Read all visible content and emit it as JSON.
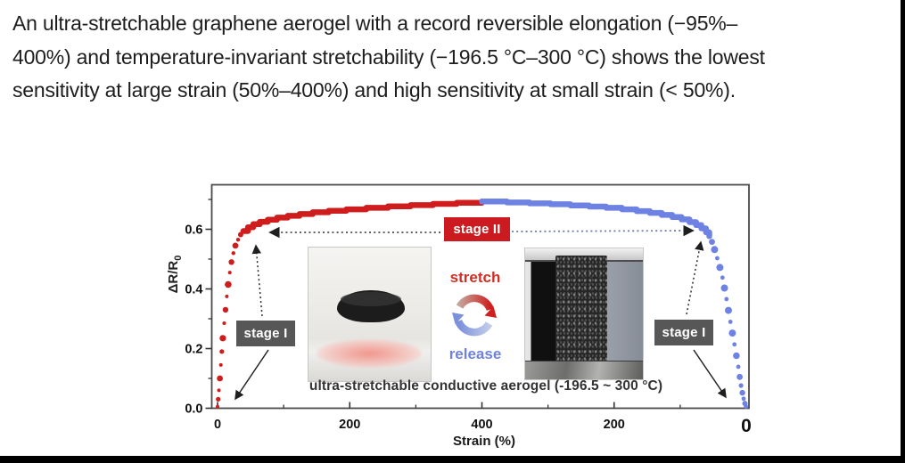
{
  "header": {
    "lines": [
      "An ultra-stretchable graphene aerogel with a record reversible elongation (−95%–",
      "400%) and temperature-invariant stretchability (−196.5 °C–300 °C) shows the lowest",
      "sensitivity at large strain (50%–400%) and high sensitivity at small strain (< 50%)."
    ]
  },
  "figure": {
    "stage2_label": "stage II",
    "stage1_left_label": "stage I",
    "stage1_right_label": "stage I",
    "stretch_label": "stretch",
    "release_label": "release",
    "caption": "ultra-stretchable conductive aerogel (-196.5 ~ 300 °C)",
    "colors": {
      "stretch_red": "#cf1d1d",
      "release_blue": "#6e82e4",
      "stage_box_gray": "#575757",
      "stage2_box_red": "#cb1b20"
    }
  },
  "chart_data": {
    "type": "scatter",
    "title": "",
    "xlabel": "Strain (%)",
    "ylabel_main": "ΔR/R",
    "ylabel_sub": "0",
    "x_axis_layout": "folded axis: strain rises 0→400% (stretch, red) then returns 400→0% (release, blue)",
    "ylim": [
      0.0,
      0.75
    ],
    "grid": false,
    "x_ticks": [
      {
        "label": "0",
        "pos": 0
      },
      {
        "label": "200",
        "pos": 200
      },
      {
        "label": "400",
        "pos": 400
      },
      {
        "label": "200",
        "pos": 600
      },
      {
        "label": "0",
        "pos": 800,
        "big": true
      }
    ],
    "x_minor_pos": [
      100,
      300,
      500,
      700
    ],
    "y_ticks": [
      {
        "label": "0.0",
        "v": 0.0
      },
      {
        "label": "0.2",
        "v": 0.2
      },
      {
        "label": "0.4",
        "v": 0.4
      },
      {
        "label": "0.6",
        "v": 0.6
      }
    ],
    "y_minor_v": [
      0.1,
      0.3,
      0.5,
      0.7
    ],
    "series": [
      {
        "name": "stretch",
        "phase": "stretch",
        "color": "#cf1d1d",
        "dot_points": [
          [
            0,
            0.005,
            2.0
          ],
          [
            1,
            0.03,
            2.6
          ],
          [
            2,
            0.06,
            2.0
          ],
          [
            3.5,
            0.1,
            3.4
          ],
          [
            5,
            0.145,
            2.0
          ],
          [
            6.5,
            0.19,
            2.6
          ],
          [
            8,
            0.235,
            3.6
          ],
          [
            10,
            0.285,
            2.0
          ],
          [
            12,
            0.33,
            3.2
          ],
          [
            14,
            0.375,
            2.0
          ],
          [
            16,
            0.415,
            3.8
          ],
          [
            18.5,
            0.455,
            2.0
          ],
          [
            21,
            0.49,
            3.2
          ],
          [
            24,
            0.52,
            2.2
          ],
          [
            27,
            0.545,
            3.4
          ],
          [
            31,
            0.565,
            2.2
          ],
          [
            35,
            0.582,
            3.0
          ],
          [
            39,
            0.594,
            2.2
          ]
        ],
        "line_points": [
          [
            39,
            0.594
          ],
          [
            46,
            0.607
          ],
          [
            54,
            0.617
          ],
          [
            64,
            0.625
          ],
          [
            76,
            0.632
          ],
          [
            90,
            0.639
          ],
          [
            106,
            0.645
          ],
          [
            124,
            0.651
          ],
          [
            144,
            0.657
          ],
          [
            168,
            0.662
          ],
          [
            195,
            0.667
          ],
          [
            225,
            0.672
          ],
          [
            258,
            0.677
          ],
          [
            292,
            0.681
          ],
          [
            326,
            0.685
          ],
          [
            362,
            0.689
          ],
          [
            400,
            0.693
          ]
        ]
      },
      {
        "name": "release",
        "phase": "release",
        "color": "#6e82e4",
        "line_points": [
          [
            400,
            0.693
          ],
          [
            362,
            0.69
          ],
          [
            328,
            0.687
          ],
          [
            296,
            0.684
          ],
          [
            266,
            0.68
          ],
          [
            238,
            0.676
          ],
          [
            212,
            0.672
          ],
          [
            188,
            0.667
          ],
          [
            166,
            0.661
          ],
          [
            146,
            0.655
          ],
          [
            128,
            0.648
          ],
          [
            112,
            0.641
          ],
          [
            98,
            0.633
          ],
          [
            86,
            0.624
          ],
          [
            76,
            0.614
          ],
          [
            68,
            0.603
          ],
          [
            61,
            0.59
          ],
          [
            56,
            0.577
          ]
        ],
        "dot_points": [
          [
            52,
            0.558,
            3.4
          ],
          [
            48,
            0.532,
            4.0
          ],
          [
            44,
            0.503,
            2.4
          ],
          [
            40,
            0.472,
            4.0
          ],
          [
            36,
            0.438,
            2.4
          ],
          [
            33,
            0.403,
            4.0
          ],
          [
            30,
            0.366,
            2.4
          ],
          [
            27,
            0.328,
            4.0
          ],
          [
            24,
            0.29,
            2.4
          ],
          [
            21,
            0.252,
            4.0
          ],
          [
            18,
            0.214,
            2.4
          ],
          [
            15,
            0.176,
            3.8
          ],
          [
            12,
            0.139,
            2.4
          ],
          [
            10,
            0.105,
            3.4
          ],
          [
            8,
            0.076,
            2.6
          ],
          [
            6,
            0.052,
            3.2
          ],
          [
            4,
            0.032,
            2.4
          ],
          [
            2,
            0.016,
            3.0
          ],
          [
            0.5,
            0.006,
            2.4
          ]
        ]
      }
    ]
  }
}
